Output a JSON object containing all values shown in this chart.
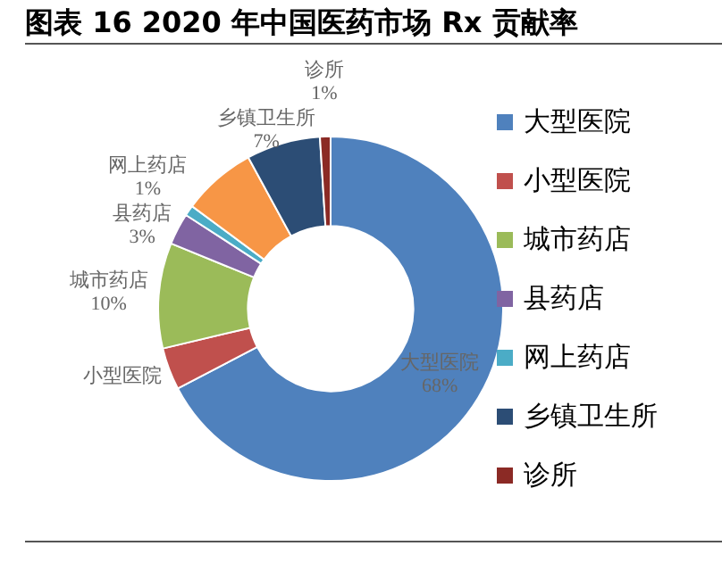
{
  "chart_data": {
    "type": "donut",
    "title": "图表 16 2020 年中国医药市场 Rx 贡献率",
    "categories": [
      "大型医院",
      "小型医院",
      "城市药店",
      "县药店",
      "网上药店",
      null,
      "乡镇卫生所",
      "诊所"
    ],
    "values": [
      68,
      4,
      10,
      3,
      1,
      7,
      7,
      1
    ],
    "value_labels": [
      "68%",
      null,
      "10%",
      "3%",
      "1%",
      null,
      "7%",
      "1%"
    ],
    "colors": [
      "#4f81bd",
      "#c0504d",
      "#9bbb59",
      "#8064a2",
      "#4bacc6",
      "#f79646",
      "#2c4d75",
      "#8b2a25"
    ],
    "legend": "right"
  }
}
